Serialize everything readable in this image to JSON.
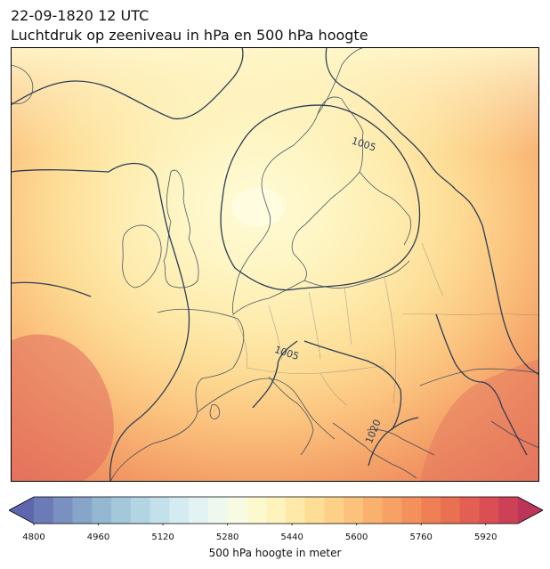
{
  "title_line1": "22-09-1820 12 UTC",
  "title_line2": "Luchtdruk op zeeniveau in hPa en 500 hPa hoogte",
  "map": {
    "contour_color": "#2b3d55",
    "border_color": "#7a7a7a",
    "contour_labels": [
      {
        "text": "1005"
      },
      {
        "text": "1005"
      },
      {
        "text": "1020"
      }
    ]
  },
  "colorbar": {
    "label": "500 hPa hoogte in meter",
    "min": 4800,
    "max": 6000,
    "step": 40,
    "ticks": [
      "4800",
      "4960",
      "5120",
      "5280",
      "5440",
      "5600",
      "5760",
      "5920"
    ],
    "extend": "both",
    "colors": [
      "#5e67ad",
      "#6b7bb6",
      "#7990c0",
      "#87a4c9",
      "#94b7d2",
      "#a3c8da",
      "#b3d5e2",
      "#c3e1ea",
      "#d4ecf1",
      "#e3f3f4",
      "#eff8ef",
      "#f8fbe3",
      "#fdf9cf",
      "#fef3bc",
      "#fee9a9",
      "#fedd97",
      "#fdd087",
      "#fcc17a",
      "#fab16e",
      "#f7a164",
      "#f3905c",
      "#ef8056",
      "#ea7052",
      "#e35f51",
      "#da4f53",
      "#cd4156",
      "#bc3559"
    ]
  }
}
